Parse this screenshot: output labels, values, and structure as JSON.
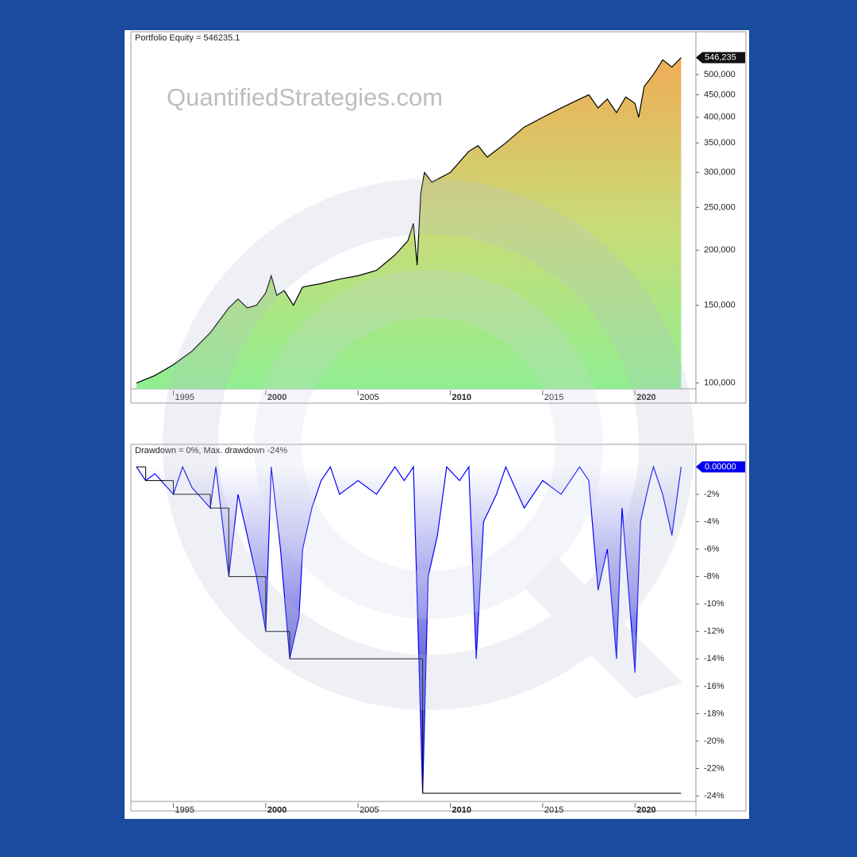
{
  "watermark": "QuantifiedStrategies.com",
  "chart_data": [
    {
      "type": "area",
      "title": "Portfolio Equity = 546235.1",
      "ylog": true,
      "x": [
        1993.0,
        1994,
        1995,
        1996,
        1997,
        1998,
        1998.5,
        1999,
        1999.5,
        2000,
        2000.3,
        2000.6,
        2001,
        2001.5,
        2002,
        2003,
        2004,
        2005,
        2006,
        2007,
        2007.7,
        2008.0,
        2008.2,
        2008.4,
        2008.6,
        2009,
        2010,
        2011,
        2011.5,
        2012,
        2013,
        2014,
        2015,
        2016,
        2017,
        2017.5,
        2018,
        2018.5,
        2019,
        2019.5,
        2020,
        2020.2,
        2020.5,
        2021,
        2021.5,
        2022,
        2022.5
      ],
      "series": [
        {
          "color": "#000000",
          "values": [
            100000,
            104000,
            110000,
            118000,
            130000,
            148000,
            155000,
            148000,
            150000,
            160000,
            175000,
            158000,
            162000,
            150000,
            165000,
            168000,
            172000,
            175000,
            180000,
            195000,
            210000,
            230000,
            185000,
            270000,
            300000,
            285000,
            300000,
            335000,
            345000,
            325000,
            350000,
            380000,
            400000,
            420000,
            440000,
            450000,
            420000,
            440000,
            410000,
            445000,
            430000,
            400000,
            470000,
            500000,
            540000,
            520000,
            546235.1
          ],
          "value_labels": [
            null,
            null,
            null,
            null,
            null,
            null,
            null,
            null,
            null,
            null,
            null,
            null,
            null,
            null,
            null,
            null,
            null,
            null,
            null,
            null,
            null,
            null,
            null,
            null,
            null,
            null,
            null,
            null,
            null,
            null,
            null,
            null,
            null,
            null,
            null,
            null,
            null,
            null,
            null,
            null,
            null,
            null,
            null,
            null,
            null,
            null,
            "546,235"
          ]
        }
      ],
      "xlim": [
        1992.7,
        2023.3
      ],
      "xticks": [
        1995,
        2000,
        2005,
        2010,
        2015,
        2020
      ],
      "ylim": [
        97000,
        620000
      ],
      "yticks": [
        {
          "value": 100000,
          "label": "100,000"
        },
        {
          "value": 150000,
          "label": "150,000"
        },
        {
          "value": 200000,
          "label": "200,000"
        },
        {
          "value": 250000,
          "label": "250,000"
        },
        {
          "value": 300000,
          "label": "300,000"
        },
        {
          "value": 350000,
          "label": "350,000"
        },
        {
          "value": 400000,
          "label": "400,000"
        },
        {
          "value": 450000,
          "label": "450,000"
        },
        {
          "value": 500000,
          "label": "500,000"
        }
      ]
    },
    {
      "type": "drawdown",
      "title": "Drawdown = 0%, Max. drawdown -24%",
      "x": [
        1993,
        1993.5,
        1994,
        1995,
        1995.5,
        1996,
        1997,
        1997.3,
        1998,
        1998.5,
        1999,
        1999.5,
        2000,
        2000.3,
        2000.8,
        2001.3,
        2001.8,
        2002,
        2002.5,
        2003,
        2003.5,
        2004,
        2005,
        2006,
        2007,
        2007.5,
        2008,
        2008.5,
        2008.8,
        2009.3,
        2009.8,
        2010.5,
        2011,
        2011.4,
        2011.8,
        2012.5,
        2013,
        2014,
        2015,
        2016,
        2017,
        2017.5,
        2018,
        2018.5,
        2019,
        2019.3,
        2020,
        2020.3,
        2020.8,
        2021,
        2021.5,
        2022,
        2022.5
      ],
      "series": [
        {
          "color": "#0000ff",
          "values": [
            0,
            -1,
            -0.5,
            -2,
            0,
            -1.5,
            -3,
            0,
            -8,
            -2,
            -5,
            -8,
            -12,
            0,
            -6,
            -14,
            -11,
            -6,
            -3,
            -1,
            0,
            -2,
            -1,
            -2,
            0,
            -1,
            0,
            -23.8,
            -8,
            -5,
            0,
            -1,
            0,
            -14,
            -4,
            -2,
            0,
            -3,
            -1,
            -2,
            0,
            -1,
            -9,
            -6,
            -14,
            -3,
            -15,
            -4,
            -1,
            0,
            -2,
            -5,
            0
          ],
          "value_labels": [
            null,
            null,
            null,
            null,
            null,
            null,
            null,
            null,
            null,
            null,
            null,
            null,
            null,
            null,
            null,
            null,
            null,
            null,
            null,
            null,
            null,
            null,
            null,
            null,
            null,
            null,
            null,
            null,
            null,
            null,
            null,
            null,
            null,
            null,
            null,
            null,
            null,
            null,
            null,
            null,
            null,
            null,
            null,
            null,
            null,
            null,
            null,
            null,
            null,
            null,
            null,
            null,
            "0.00000"
          ]
        },
        {
          "color": "#000000",
          "step": true,
          "x": [
            1993,
            1993.5,
            1995,
            1997,
            1998,
            2000,
            2001.3,
            2008.5,
            2022.5
          ],
          "values": [
            0,
            -1,
            -2,
            -3,
            -8,
            -12,
            -14,
            -23.8,
            -23.8
          ]
        }
      ],
      "xlim": [
        1992.7,
        2023.3
      ],
      "xticks": [
        1995,
        2000,
        2005,
        2010,
        2015,
        2020
      ],
      "ylim": [
        -24.4,
        0.6
      ],
      "yticks": [
        {
          "value": -2,
          "label": "-2%"
        },
        {
          "value": -4,
          "label": "-4%"
        },
        {
          "value": -6,
          "label": "-6%"
        },
        {
          "value": -8,
          "label": "-8%"
        },
        {
          "value": -10,
          "label": "-10%"
        },
        {
          "value": -12,
          "label": "-12%"
        },
        {
          "value": -14,
          "label": "-14%"
        },
        {
          "value": -16,
          "label": "-16%"
        },
        {
          "value": -18,
          "label": "-18%"
        },
        {
          "value": -20,
          "label": "-20%"
        },
        {
          "value": -22,
          "label": "-22%"
        },
        {
          "value": -24,
          "label": "-24%"
        }
      ]
    }
  ]
}
